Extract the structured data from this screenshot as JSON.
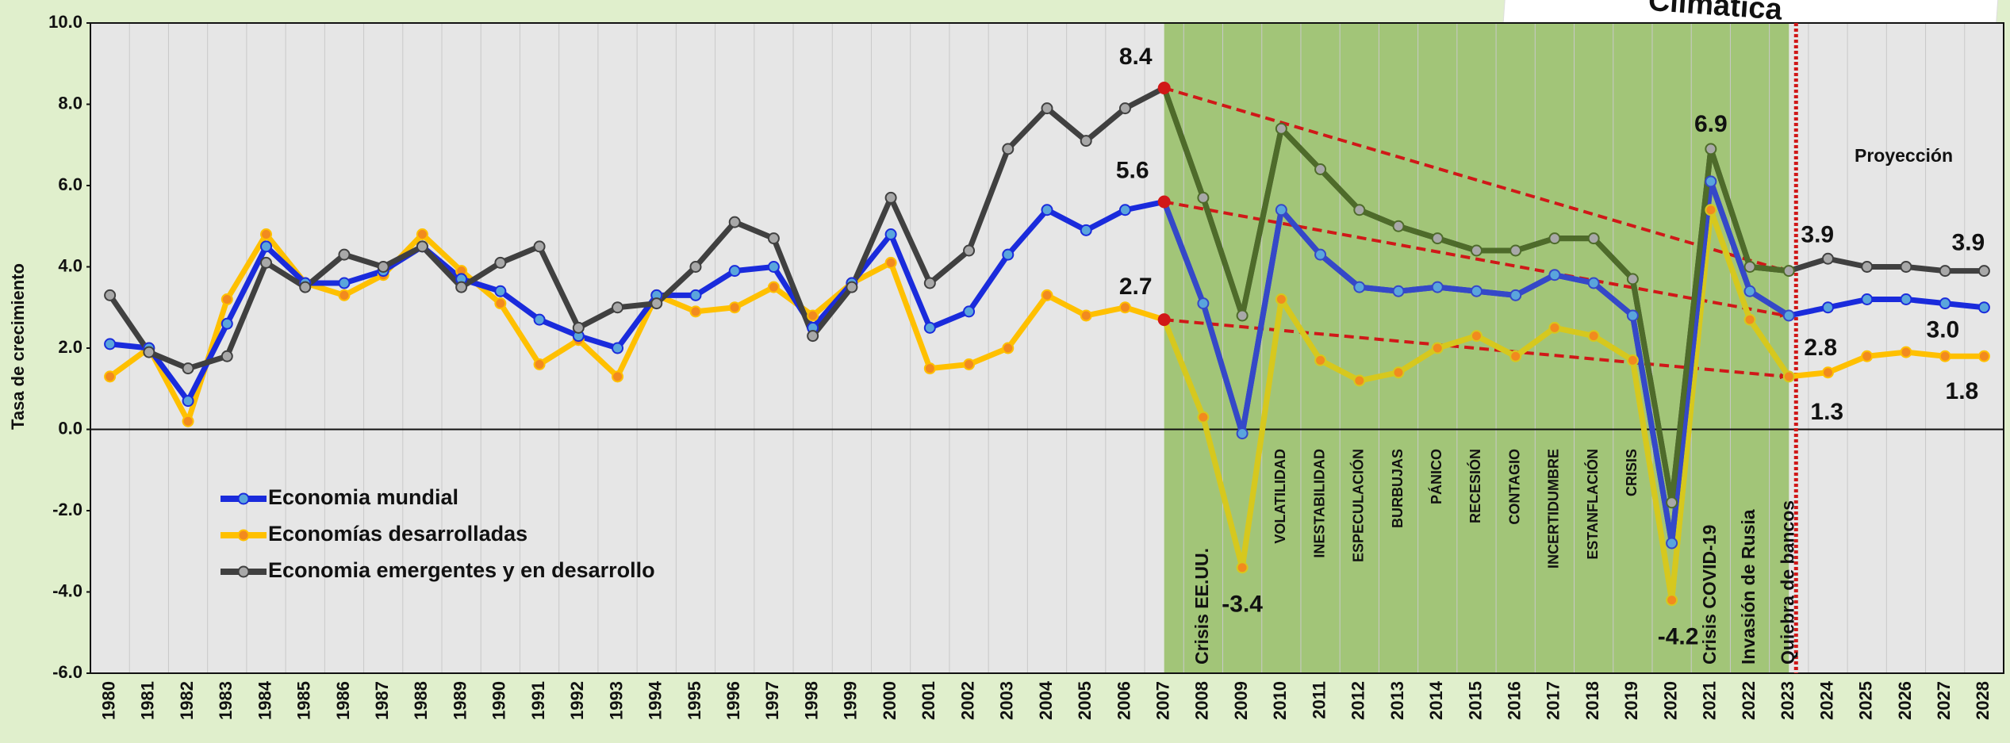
{
  "chart_data": {
    "type": "line",
    "y_label": "Tasa de crecimiento",
    "note": "Climática",
    "categories": [
      "1980",
      "1981",
      "1982",
      "1983",
      "1984",
      "1985",
      "1986",
      "1987",
      "1988",
      "1989",
      "1990",
      "1991",
      "1992",
      "1993",
      "1994",
      "1995",
      "1996",
      "1997",
      "1998",
      "1999",
      "2000",
      "2001",
      "2002",
      "2003",
      "2004",
      "2005",
      "2006",
      "2007",
      "2008",
      "2009",
      "2010",
      "2011",
      "2012",
      "2013",
      "2014",
      "2015",
      "2016",
      "2017",
      "2018",
      "2019",
      "2020",
      "2021",
      "2022",
      "2023",
      "2024",
      "2025",
      "2026",
      "2027",
      "2028"
    ],
    "ylim": [
      -6,
      10
    ],
    "yticks": [
      {
        "value": -6,
        "label": "-6.0"
      },
      {
        "value": -4,
        "label": "-4.0"
      },
      {
        "value": -2,
        "label": "-2.0"
      },
      {
        "value": 0,
        "label": "0.0"
      },
      {
        "value": 2,
        "label": "2.0"
      },
      {
        "value": 4,
        "label": "4.0"
      },
      {
        "value": 6,
        "label": "6.0"
      },
      {
        "value": 8,
        "label": "8.0"
      },
      {
        "value": 10,
        "label": "10.0"
      }
    ],
    "shaded_range": [
      "2007",
      "2023"
    ],
    "shade_color": "#a2c578",
    "projection": {
      "label": "Proyección",
      "from": "2023"
    },
    "event_labels": [
      {
        "text": "Crisis EE.UU.",
        "x": "2008"
      },
      {
        "text": "Crisis COVID-19",
        "x": "2021"
      },
      {
        "text": "Invasión de Rusia",
        "x": "2022"
      },
      {
        "text": "Quiebra de bancos",
        "x": "2023"
      }
    ],
    "phase_labels": [
      {
        "text": "VOLATILIDAD",
        "x": "2010"
      },
      {
        "text": "INESTABILIDAD",
        "x": "2011"
      },
      {
        "text": "ESPECULACIÓN",
        "x": "2012"
      },
      {
        "text": "BURBUJAS",
        "x": "2013"
      },
      {
        "text": "PÁNICO",
        "x": "2014"
      },
      {
        "text": "RECESIÓN",
        "x": "2015"
      },
      {
        "text": "CONTAGIO",
        "x": "2016"
      },
      {
        "text": "INCERTIDUMBRE",
        "x": "2017"
      },
      {
        "text": "ESTANFLACIÓN",
        "x": "2018"
      },
      {
        "text": "CRISIS",
        "x": "2019"
      }
    ],
    "series": [
      {
        "name": "Economia mundial",
        "color": "#1a2bdc",
        "band_color": "#3548c8",
        "marker_color": "#5aa5dc",
        "values": [
          2.1,
          2.0,
          0.7,
          2.6,
          4.5,
          3.6,
          3.6,
          3.9,
          4.5,
          3.7,
          3.4,
          2.7,
          2.3,
          2.0,
          3.3,
          3.3,
          3.9,
          4.0,
          2.5,
          3.6,
          4.8,
          2.5,
          2.9,
          4.3,
          5.4,
          4.9,
          5.4,
          5.6,
          3.1,
          -0.1,
          5.4,
          4.3,
          3.5,
          3.4,
          3.5,
          3.4,
          3.3,
          3.8,
          3.6,
          2.8,
          -2.8,
          6.1,
          3.4,
          2.8,
          3.0,
          3.2,
          3.2,
          3.1,
          3.0
        ],
        "value_labels": [
          null,
          null,
          null,
          null,
          null,
          null,
          null,
          null,
          null,
          null,
          null,
          null,
          null,
          null,
          null,
          null,
          null,
          null,
          null,
          null,
          null,
          null,
          null,
          null,
          null,
          null,
          null,
          "5.6",
          null,
          null,
          null,
          null,
          null,
          null,
          null,
          null,
          null,
          null,
          null,
          null,
          null,
          null,
          null,
          "2.8",
          null,
          null,
          null,
          null,
          "3.0"
        ]
      },
      {
        "name": "Economías desarrolladas",
        "color": "#ffc000",
        "band_color": "#d6c81e",
        "marker_color": "#f28a1e",
        "values": [
          1.3,
          2.0,
          0.2,
          3.2,
          4.8,
          3.6,
          3.3,
          3.8,
          4.8,
          3.9,
          3.1,
          1.6,
          2.2,
          1.3,
          3.3,
          2.9,
          3.0,
          3.5,
          2.8,
          3.6,
          4.1,
          1.5,
          1.6,
          2.0,
          3.3,
          2.8,
          3.0,
          2.7,
          0.3,
          -3.4,
          3.2,
          1.7,
          1.2,
          1.4,
          2.0,
          2.3,
          1.8,
          2.5,
          2.3,
          1.7,
          -4.2,
          5.4,
          2.7,
          1.3,
          1.4,
          1.8,
          1.9,
          1.8,
          1.8
        ],
        "value_labels": [
          null,
          null,
          null,
          null,
          null,
          null,
          null,
          null,
          null,
          null,
          null,
          null,
          null,
          null,
          null,
          null,
          null,
          null,
          null,
          null,
          null,
          null,
          null,
          null,
          null,
          null,
          null,
          "2.7",
          null,
          "-3.4",
          null,
          null,
          null,
          null,
          null,
          null,
          null,
          null,
          null,
          null,
          "-4.2",
          null,
          null,
          "1.3",
          null,
          null,
          null,
          null,
          "1.8"
        ]
      },
      {
        "name": "Economia emergentes y en desarrollo",
        "color": "#404040",
        "band_color": "#4e6b2a",
        "marker_color": "#a8a8a8",
        "values": [
          3.3,
          1.9,
          1.5,
          1.8,
          4.1,
          3.5,
          4.3,
          4.0,
          4.5,
          3.5,
          4.1,
          4.5,
          2.5,
          3.0,
          3.1,
          4.0,
          5.1,
          4.7,
          2.3,
          3.5,
          5.7,
          3.6,
          4.4,
          6.9,
          7.9,
          7.1,
          7.9,
          8.4,
          5.7,
          2.8,
          7.4,
          6.4,
          5.4,
          5.0,
          4.7,
          4.4,
          4.4,
          4.7,
          4.7,
          3.7,
          -1.8,
          6.9,
          4.0,
          3.9,
          4.2,
          4.0,
          4.0,
          3.9,
          3.9
        ],
        "value_labels": [
          null,
          null,
          null,
          null,
          null,
          null,
          null,
          null,
          null,
          null,
          null,
          null,
          null,
          null,
          null,
          null,
          null,
          null,
          null,
          null,
          null,
          null,
          null,
          null,
          null,
          null,
          null,
          "8.4",
          null,
          null,
          null,
          null,
          null,
          null,
          null,
          null,
          null,
          null,
          null,
          null,
          null,
          "6.9",
          null,
          "3.9",
          null,
          null,
          null,
          null,
          "3.9"
        ]
      }
    ]
  }
}
